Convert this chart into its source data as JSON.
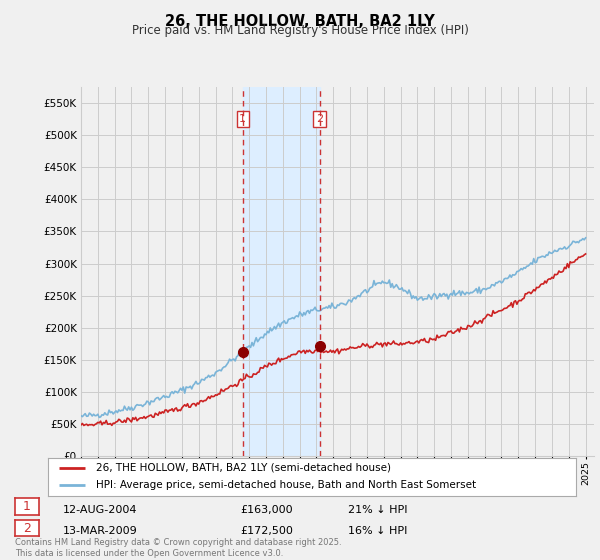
{
  "title": "26, THE HOLLOW, BATH, BA2 1LY",
  "subtitle": "Price paid vs. HM Land Registry's House Price Index (HPI)",
  "ylabel_ticks": [
    "£0",
    "£50K",
    "£100K",
    "£150K",
    "£200K",
    "£250K",
    "£300K",
    "£350K",
    "£400K",
    "£450K",
    "£500K",
    "£550K"
  ],
  "ytick_values": [
    0,
    50000,
    100000,
    150000,
    200000,
    250000,
    300000,
    350000,
    400000,
    450000,
    500000,
    550000
  ],
  "ymax": 575000,
  "legend_line1": "26, THE HOLLOW, BATH, BA2 1LY (semi-detached house)",
  "legend_line2": "HPI: Average price, semi-detached house, Bath and North East Somerset",
  "sale1_date": "12-AUG-2004",
  "sale1_price": "£163,000",
  "sale1_hpi": "21% ↓ HPI",
  "sale1_price_val": 163000,
  "sale2_date": "13-MAR-2009",
  "sale2_price": "£172,500",
  "sale2_hpi": "16% ↓ HPI",
  "sale2_price_val": 172500,
  "footnote": "Contains HM Land Registry data © Crown copyright and database right 2025.\nThis data is licensed under the Open Government Licence v3.0.",
  "hpi_color": "#7ab4d8",
  "price_color": "#cc2222",
  "shade_color": "#ddeeff",
  "vline_color": "#cc3333",
  "bg_color": "#f0f0f0",
  "plot_bg": "#f0f0f0",
  "grid_color": "#cccccc",
  "sale1_x_year": 2004.62,
  "sale2_x_year": 2009.2,
  "xmin": 1995.0,
  "xmax": 2025.5
}
